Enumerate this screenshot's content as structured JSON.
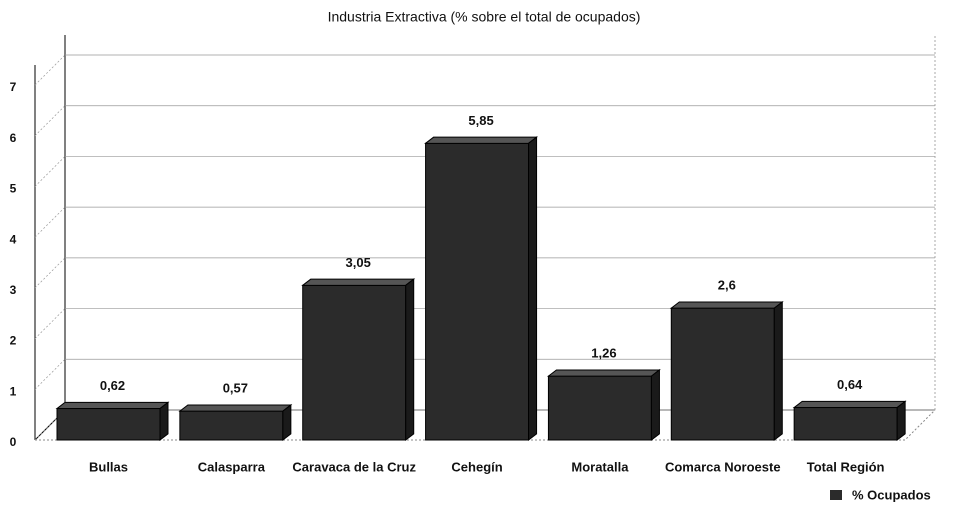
{
  "chart_data": {
    "type": "bar3d",
    "title": "Industria Extractiva (% sobre el total de ocupados)",
    "categories": [
      "Bullas",
      "Calasparra",
      "Caravaca de la Cruz",
      "Cehegín",
      "Moratalla",
      "Comarca Noroeste",
      "Total Región"
    ],
    "series": [
      {
        "name": "% Ocupados",
        "color": "#2b2b2b",
        "values": [
          0.62,
          0.57,
          3.05,
          5.85,
          1.26,
          2.6,
          0.64
        ],
        "value_labels": [
          "0,62",
          "0,57",
          "3,05",
          "5,85",
          "1,26",
          "2,6",
          "0,64"
        ]
      }
    ],
    "ylim": [
      0,
      7
    ],
    "yticks": [
      0,
      1,
      2,
      3,
      4,
      5,
      6,
      7
    ],
    "grid": true,
    "legend": "bottom-right"
  }
}
